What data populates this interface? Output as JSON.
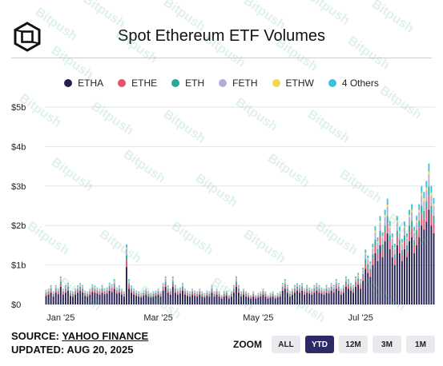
{
  "header": {
    "title": "Spot Ethereum ETF Volumes",
    "logo": "block-logo-icon"
  },
  "legend": [
    {
      "label": "ETHA",
      "color": "#231f52"
    },
    {
      "label": "ETHE",
      "color": "#e8506e"
    },
    {
      "label": "ETH",
      "color": "#2aa89a"
    },
    {
      "label": "FETH",
      "color": "#b3acd9"
    },
    {
      "label": "ETHW",
      "color": "#f1d94c"
    },
    {
      "label": "4 Others",
      "color": "#3cc2dd"
    }
  ],
  "footer": {
    "source_prefix": "SOURCE: ",
    "source_link": "YAHOO FINANCE",
    "updated": "UPDATED: AUG 20, 2025"
  },
  "zoom": {
    "label": "ZOOM",
    "buttons": [
      "ALL",
      "YTD",
      "12M",
      "3M",
      "1M"
    ],
    "active": "YTD"
  },
  "watermark": "Bitpush",
  "chart_data": {
    "type": "bar",
    "stacked": true,
    "ylim": [
      0,
      5
    ],
    "yticks": [
      0,
      1,
      2,
      3,
      4,
      5
    ],
    "ytick_labels": [
      "$0",
      "$1b",
      "$2b",
      "$3b",
      "$4b",
      "$5b"
    ],
    "xtick_labels": [
      "Jan '25",
      "Mar '25",
      "May '25",
      "Jul '25"
    ],
    "xtick_index": [
      6,
      46,
      87,
      129
    ],
    "grid": true,
    "series": [
      {
        "name": "ETHA",
        "values": [
          0.22,
          0.25,
          0.3,
          0.2,
          0.3,
          0.26,
          0.45,
          0.25,
          0.3,
          0.35,
          0.22,
          0.2,
          0.25,
          0.3,
          0.35,
          0.3,
          0.22,
          0.2,
          0.25,
          0.32,
          0.3,
          0.28,
          0.25,
          0.3,
          0.26,
          0.28,
          0.35,
          0.32,
          0.4,
          0.28,
          0.3,
          0.25,
          0.2,
          0.95,
          0.4,
          0.3,
          0.25,
          0.22,
          0.2,
          0.18,
          0.22,
          0.25,
          0.2,
          0.18,
          0.2,
          0.22,
          0.25,
          0.2,
          0.35,
          0.45,
          0.3,
          0.25,
          0.45,
          0.3,
          0.25,
          0.28,
          0.35,
          0.25,
          0.22,
          0.2,
          0.25,
          0.22,
          0.2,
          0.25,
          0.2,
          0.18,
          0.22,
          0.2,
          0.3,
          0.2,
          0.25,
          0.2,
          0.15,
          0.2,
          0.22,
          0.15,
          0.2,
          0.3,
          0.45,
          0.3,
          0.2,
          0.25,
          0.2,
          0.18,
          0.15,
          0.2,
          0.15,
          0.18,
          0.2,
          0.25,
          0.2,
          0.15,
          0.18,
          0.2,
          0.15,
          0.18,
          0.2,
          0.35,
          0.4,
          0.3,
          0.2,
          0.25,
          0.3,
          0.35,
          0.3,
          0.35,
          0.25,
          0.3,
          0.28,
          0.25,
          0.3,
          0.35,
          0.3,
          0.28,
          0.25,
          0.3,
          0.28,
          0.35,
          0.3,
          0.4,
          0.35,
          0.25,
          0.3,
          0.45,
          0.4,
          0.35,
          0.3,
          0.45,
          0.5,
          0.4,
          0.6,
          0.9,
          0.8,
          0.7,
          1.0,
          1.3,
          1.1,
          1.5,
          1.2,
          1.6,
          1.8,
          1.4,
          1.2,
          1.0,
          1.5,
          1.3,
          1.1,
          1.4,
          1.2,
          1.6,
          1.7,
          1.3,
          1.5,
          1.7,
          2.0,
          1.9,
          2.1,
          2.4,
          2.0,
          1.8
        ]
      },
      {
        "name": "ETHE",
        "values": [
          0.05,
          0.05,
          0.06,
          0.04,
          0.06,
          0.05,
          0.08,
          0.05,
          0.06,
          0.06,
          0.04,
          0.04,
          0.05,
          0.05,
          0.06,
          0.06,
          0.04,
          0.04,
          0.05,
          0.06,
          0.05,
          0.05,
          0.05,
          0.06,
          0.05,
          0.05,
          0.07,
          0.06,
          0.07,
          0.05,
          0.05,
          0.05,
          0.04,
          0.18,
          0.07,
          0.05,
          0.05,
          0.04,
          0.04,
          0.03,
          0.04,
          0.05,
          0.04,
          0.03,
          0.04,
          0.04,
          0.05,
          0.04,
          0.06,
          0.08,
          0.05,
          0.05,
          0.08,
          0.06,
          0.05,
          0.05,
          0.06,
          0.05,
          0.04,
          0.04,
          0.05,
          0.04,
          0.04,
          0.05,
          0.04,
          0.03,
          0.04,
          0.04,
          0.06,
          0.04,
          0.05,
          0.04,
          0.03,
          0.04,
          0.04,
          0.03,
          0.04,
          0.06,
          0.08,
          0.06,
          0.04,
          0.05,
          0.04,
          0.03,
          0.03,
          0.04,
          0.03,
          0.03,
          0.04,
          0.05,
          0.04,
          0.03,
          0.03,
          0.04,
          0.03,
          0.03,
          0.04,
          0.06,
          0.07,
          0.06,
          0.04,
          0.05,
          0.06,
          0.06,
          0.06,
          0.06,
          0.05,
          0.06,
          0.05,
          0.05,
          0.06,
          0.06,
          0.06,
          0.05,
          0.05,
          0.06,
          0.05,
          0.06,
          0.06,
          0.07,
          0.06,
          0.05,
          0.06,
          0.08,
          0.07,
          0.06,
          0.06,
          0.08,
          0.09,
          0.07,
          0.1,
          0.15,
          0.13,
          0.12,
          0.16,
          0.2,
          0.18,
          0.22,
          0.19,
          0.24,
          0.26,
          0.21,
          0.18,
          0.16,
          0.22,
          0.2,
          0.17,
          0.21,
          0.18,
          0.24,
          0.25,
          0.2,
          0.23,
          0.25,
          0.3,
          0.28,
          0.31,
          0.35,
          0.3,
          0.27
        ]
      },
      {
        "name": "ETH",
        "values": [
          0.03,
          0.03,
          0.04,
          0.03,
          0.04,
          0.03,
          0.05,
          0.03,
          0.04,
          0.04,
          0.03,
          0.03,
          0.03,
          0.04,
          0.04,
          0.04,
          0.03,
          0.03,
          0.03,
          0.04,
          0.04,
          0.03,
          0.03,
          0.04,
          0.03,
          0.03,
          0.04,
          0.04,
          0.05,
          0.03,
          0.04,
          0.03,
          0.03,
          0.12,
          0.05,
          0.04,
          0.03,
          0.03,
          0.03,
          0.02,
          0.03,
          0.03,
          0.03,
          0.02,
          0.03,
          0.03,
          0.03,
          0.03,
          0.04,
          0.05,
          0.04,
          0.03,
          0.05,
          0.04,
          0.03,
          0.03,
          0.04,
          0.03,
          0.03,
          0.03,
          0.03,
          0.03,
          0.03,
          0.03,
          0.03,
          0.02,
          0.03,
          0.03,
          0.04,
          0.03,
          0.03,
          0.03,
          0.02,
          0.03,
          0.03,
          0.02,
          0.03,
          0.04,
          0.05,
          0.04,
          0.03,
          0.03,
          0.03,
          0.02,
          0.02,
          0.03,
          0.02,
          0.02,
          0.03,
          0.03,
          0.03,
          0.02,
          0.02,
          0.03,
          0.02,
          0.02,
          0.03,
          0.04,
          0.05,
          0.04,
          0.03,
          0.03,
          0.04,
          0.04,
          0.04,
          0.04,
          0.03,
          0.04,
          0.03,
          0.03,
          0.04,
          0.04,
          0.04,
          0.03,
          0.03,
          0.04,
          0.03,
          0.04,
          0.04,
          0.05,
          0.04,
          0.03,
          0.04,
          0.05,
          0.05,
          0.04,
          0.04,
          0.05,
          0.06,
          0.05,
          0.07,
          0.1,
          0.09,
          0.08,
          0.11,
          0.14,
          0.12,
          0.15,
          0.13,
          0.16,
          0.18,
          0.14,
          0.12,
          0.11,
          0.15,
          0.13,
          0.11,
          0.14,
          0.12,
          0.16,
          0.17,
          0.13,
          0.15,
          0.17,
          0.2,
          0.19,
          0.21,
          0.24,
          0.2,
          0.18
        ]
      },
      {
        "name": "FETH",
        "values": [
          0.04,
          0.04,
          0.05,
          0.03,
          0.05,
          0.04,
          0.07,
          0.04,
          0.05,
          0.05,
          0.03,
          0.03,
          0.04,
          0.05,
          0.05,
          0.05,
          0.03,
          0.03,
          0.04,
          0.05,
          0.05,
          0.04,
          0.04,
          0.05,
          0.04,
          0.04,
          0.05,
          0.05,
          0.06,
          0.04,
          0.05,
          0.04,
          0.03,
          0.15,
          0.06,
          0.05,
          0.04,
          0.03,
          0.03,
          0.03,
          0.03,
          0.04,
          0.03,
          0.03,
          0.03,
          0.03,
          0.04,
          0.03,
          0.05,
          0.07,
          0.05,
          0.04,
          0.07,
          0.05,
          0.04,
          0.04,
          0.05,
          0.04,
          0.03,
          0.03,
          0.04,
          0.03,
          0.03,
          0.04,
          0.03,
          0.03,
          0.03,
          0.03,
          0.05,
          0.03,
          0.04,
          0.03,
          0.02,
          0.03,
          0.03,
          0.02,
          0.03,
          0.05,
          0.07,
          0.05,
          0.03,
          0.04,
          0.03,
          0.03,
          0.02,
          0.03,
          0.02,
          0.03,
          0.03,
          0.04,
          0.03,
          0.02,
          0.03,
          0.03,
          0.02,
          0.03,
          0.03,
          0.05,
          0.06,
          0.05,
          0.03,
          0.04,
          0.05,
          0.05,
          0.05,
          0.05,
          0.04,
          0.05,
          0.04,
          0.04,
          0.05,
          0.05,
          0.05,
          0.04,
          0.04,
          0.05,
          0.04,
          0.05,
          0.05,
          0.06,
          0.05,
          0.04,
          0.05,
          0.07,
          0.06,
          0.05,
          0.05,
          0.07,
          0.08,
          0.06,
          0.09,
          0.13,
          0.12,
          0.1,
          0.14,
          0.18,
          0.16,
          0.2,
          0.17,
          0.21,
          0.23,
          0.19,
          0.16,
          0.14,
          0.2,
          0.18,
          0.15,
          0.19,
          0.16,
          0.21,
          0.22,
          0.18,
          0.2,
          0.22,
          0.26,
          0.25,
          0.27,
          0.3,
          0.26,
          0.24
        ]
      },
      {
        "name": "ETHW",
        "values": [
          0.01,
          0.01,
          0.01,
          0.01,
          0.01,
          0.01,
          0.02,
          0.01,
          0.01,
          0.01,
          0.01,
          0.01,
          0.01,
          0.01,
          0.01,
          0.01,
          0.01,
          0.01,
          0.01,
          0.01,
          0.01,
          0.01,
          0.01,
          0.01,
          0.01,
          0.01,
          0.01,
          0.01,
          0.02,
          0.01,
          0.01,
          0.01,
          0.01,
          0.04,
          0.02,
          0.01,
          0.01,
          0.01,
          0.01,
          0.01,
          0.01,
          0.01,
          0.01,
          0.01,
          0.01,
          0.01,
          0.01,
          0.01,
          0.01,
          0.02,
          0.01,
          0.01,
          0.02,
          0.01,
          0.01,
          0.01,
          0.01,
          0.01,
          0.01,
          0.01,
          0.01,
          0.01,
          0.01,
          0.01,
          0.01,
          0.01,
          0.01,
          0.01,
          0.01,
          0.01,
          0.01,
          0.01,
          0.01,
          0.01,
          0.01,
          0.01,
          0.01,
          0.01,
          0.02,
          0.01,
          0.01,
          0.01,
          0.01,
          0.01,
          0.01,
          0.01,
          0.01,
          0.01,
          0.01,
          0.01,
          0.01,
          0.01,
          0.01,
          0.01,
          0.01,
          0.01,
          0.01,
          0.01,
          0.02,
          0.01,
          0.01,
          0.01,
          0.01,
          0.01,
          0.01,
          0.01,
          0.01,
          0.01,
          0.01,
          0.01,
          0.01,
          0.01,
          0.01,
          0.01,
          0.01,
          0.01,
          0.01,
          0.01,
          0.01,
          0.02,
          0.01,
          0.01,
          0.01,
          0.02,
          0.02,
          0.01,
          0.01,
          0.02,
          0.02,
          0.02,
          0.02,
          0.03,
          0.03,
          0.03,
          0.04,
          0.05,
          0.04,
          0.05,
          0.04,
          0.06,
          0.06,
          0.05,
          0.04,
          0.04,
          0.05,
          0.05,
          0.04,
          0.05,
          0.04,
          0.06,
          0.06,
          0.05,
          0.05,
          0.06,
          0.07,
          0.07,
          0.07,
          0.08,
          0.07,
          0.06
        ]
      },
      {
        "name": "4 Others",
        "values": [
          0.02,
          0.02,
          0.03,
          0.02,
          0.03,
          0.02,
          0.04,
          0.02,
          0.03,
          0.03,
          0.02,
          0.02,
          0.02,
          0.03,
          0.03,
          0.03,
          0.02,
          0.02,
          0.02,
          0.03,
          0.03,
          0.02,
          0.02,
          0.03,
          0.02,
          0.02,
          0.03,
          0.03,
          0.04,
          0.02,
          0.03,
          0.02,
          0.02,
          0.08,
          0.04,
          0.03,
          0.02,
          0.02,
          0.02,
          0.02,
          0.02,
          0.02,
          0.02,
          0.02,
          0.02,
          0.02,
          0.02,
          0.02,
          0.03,
          0.04,
          0.03,
          0.02,
          0.04,
          0.03,
          0.02,
          0.02,
          0.03,
          0.02,
          0.02,
          0.02,
          0.02,
          0.02,
          0.02,
          0.02,
          0.02,
          0.02,
          0.02,
          0.02,
          0.03,
          0.02,
          0.02,
          0.02,
          0.01,
          0.02,
          0.02,
          0.01,
          0.02,
          0.03,
          0.04,
          0.03,
          0.02,
          0.02,
          0.02,
          0.02,
          0.01,
          0.02,
          0.01,
          0.02,
          0.02,
          0.02,
          0.02,
          0.01,
          0.02,
          0.02,
          0.01,
          0.02,
          0.02,
          0.03,
          0.04,
          0.03,
          0.02,
          0.02,
          0.03,
          0.03,
          0.03,
          0.03,
          0.02,
          0.03,
          0.02,
          0.02,
          0.03,
          0.03,
          0.03,
          0.02,
          0.02,
          0.03,
          0.02,
          0.03,
          0.03,
          0.04,
          0.03,
          0.02,
          0.03,
          0.04,
          0.04,
          0.03,
          0.03,
          0.04,
          0.05,
          0.04,
          0.05,
          0.08,
          0.07,
          0.06,
          0.09,
          0.11,
          0.1,
          0.12,
          0.1,
          0.13,
          0.15,
          0.12,
          0.1,
          0.09,
          0.12,
          0.11,
          0.09,
          0.11,
          0.1,
          0.13,
          0.14,
          0.11,
          0.12,
          0.14,
          0.17,
          0.16,
          0.17,
          0.2,
          0.17,
          0.15
        ]
      }
    ]
  }
}
